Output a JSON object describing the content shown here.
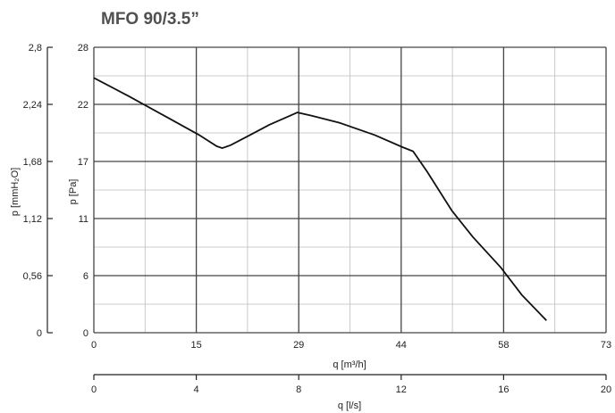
{
  "chart_data": {
    "type": "line",
    "title": "MFO 90/3.5”",
    "xlabel": "q [m³/h]",
    "x2label": "q [l/s]",
    "ylabel": "p [Pa]",
    "y2label": "p [mmH₂O]",
    "x_ticks": [
      "0",
      "15",
      "29",
      "44",
      "58",
      "73"
    ],
    "x2_ticks": [
      "0",
      "4",
      "8",
      "12",
      "16",
      "20"
    ],
    "y_ticks": [
      "0",
      "6",
      "11",
      "17",
      "22",
      "28"
    ],
    "y2_ticks": [
      "0",
      "0,56",
      "1,12",
      "1,68",
      "2,24",
      "2,8"
    ],
    "xlim": [
      0,
      73
    ],
    "ylim": [
      0,
      28
    ],
    "grid": true,
    "series": [
      {
        "x": [
          0,
          5,
          10,
          15,
          17.5,
          18.3,
          19.5,
          22,
          25,
          28,
          29,
          31,
          35,
          40,
          44,
          45.5,
          47.5,
          51,
          54,
          58,
          61,
          64.5
        ],
        "y": [
          25,
          23.2,
          21.3,
          19.4,
          18.3,
          18.1,
          18.4,
          19.3,
          20.4,
          21.3,
          21.6,
          21.3,
          20.6,
          19.4,
          18.2,
          17.8,
          15.8,
          12,
          9.4,
          6.4,
          3.7,
          1.2
        ]
      }
    ]
  }
}
